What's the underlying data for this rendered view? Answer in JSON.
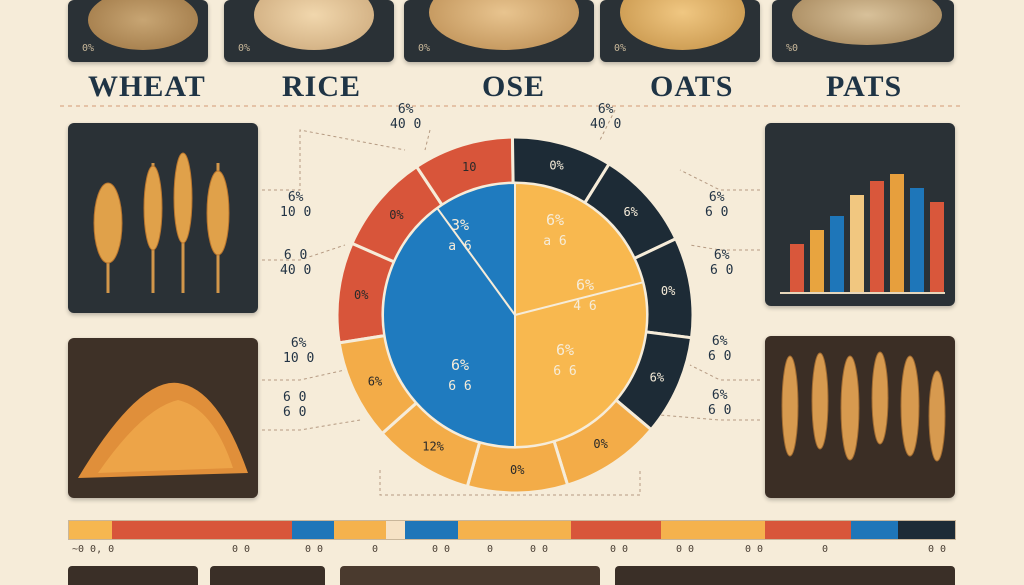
{
  "top_panels": [
    {
      "tag": "0%"
    },
    {
      "tag": "0%"
    },
    {
      "tag": "0%"
    },
    {
      "tag": "0%"
    },
    {
      "tag": "%0"
    }
  ],
  "categories": [
    "WHEAT",
    "RICE",
    "OSE",
    "OATS",
    "PATS"
  ],
  "left_labels": [
    {
      "line1": "6%",
      "line2": "10 0"
    },
    {
      "line1": "6 0",
      "line2": "40 0"
    },
    {
      "line1": "6%",
      "line2": "10 0"
    },
    {
      "line1": "6 0",
      "line2": "6 0"
    }
  ],
  "right_labels": [
    {
      "line1": "6%",
      "line2": "6 0"
    },
    {
      "line1": "6%",
      "line2": "6 0"
    },
    {
      "line1": "6%",
      "line2": "6 0"
    },
    {
      "line1": "6%",
      "line2": "6 0"
    }
  ],
  "top_labels": [
    {
      "line1": "6%",
      "line2": "40 0"
    },
    {
      "line1": "6%",
      "line2": "40 0"
    }
  ],
  "pie": {
    "segments": [
      {
        "label": "6%",
        "sub": "a 6",
        "color": "#f7b84e"
      },
      {
        "label": "6%",
        "sub": "4 6",
        "color": "#f5b24a"
      },
      {
        "label": "6%",
        "sub": "6 6",
        "color": "#f2a843"
      },
      {
        "label": "3%",
        "sub": "a 6",
        "color": "#1f7bbf"
      },
      {
        "label": "6%",
        "sub": "6 6",
        "color": "#1c73b5"
      }
    ],
    "ring": [
      {
        "label": "0%",
        "color": "#d8553a"
      },
      {
        "label": "0%",
        "color": "#d8553a"
      },
      {
        "label": "10",
        "color": "#d8553a"
      },
      {
        "label": "0%",
        "color": "#1d2b36"
      },
      {
        "label": "6%",
        "color": "#1d2b36"
      },
      {
        "label": "0%",
        "color": "#1d2b36"
      },
      {
        "label": "6%",
        "color": "#1d2b36"
      },
      {
        "label": "0%",
        "color": "#f3ac48"
      },
      {
        "label": "0%",
        "color": "#f3ac48"
      },
      {
        "label": "12%",
        "color": "#f3ac48"
      },
      {
        "label": "6%",
        "color": "#f3ac48"
      }
    ]
  },
  "strip_colors": [
    "#f6b750",
    "#d8563a",
    "#d8563a",
    "#1e76b9",
    "#f5b24d",
    "#f6e2c5",
    "#1e76b9",
    "#f5b24d",
    "#f5b24d",
    "#d8563a",
    "#f5b24d",
    "#d8563a",
    "#1e76b9",
    "#1d2b36"
  ],
  "strip_legend": [
    "~0 0, 0",
    "0 0",
    "0 0",
    "0",
    "0 0",
    "0",
    "0 0",
    "0 0",
    "0 0",
    "0 0",
    "0",
    "0 0"
  ],
  "chart_panel_bars": [
    {
      "color": "#d9573b"
    },
    {
      "color": "#e8a43f"
    },
    {
      "color": "#1e76b9"
    },
    {
      "color": "#f1c780"
    },
    {
      "color": "#d9573b"
    },
    {
      "color": "#e79f3d"
    },
    {
      "color": "#1e76b9"
    },
    {
      "color": "#d9573b"
    }
  ]
}
